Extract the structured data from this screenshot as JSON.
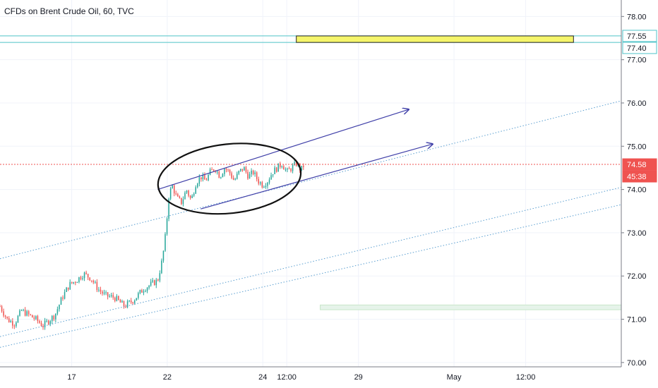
{
  "title": "CFDs on Brent Crude Oil, 60, TVC",
  "colors": {
    "up": "#26a69a",
    "down": "#ef5350",
    "channel": "#3f3fa8",
    "dotted": "#5b9fd0",
    "hline": "#4fc3c8",
    "zone_fill": "#f5f56b",
    "green_zone": "#e6f3ea",
    "last_price": "#ef5350"
  },
  "price_tags": [
    {
      "label": "77.55",
      "value": 77.55,
      "kind": "line"
    },
    {
      "label": "77.40",
      "value": 77.4,
      "kind": "line"
    },
    {
      "label": "74.58",
      "value": 74.58,
      "kind": "last"
    },
    {
      "label": "45:38",
      "value": 74.35,
      "kind": "countdown"
    }
  ],
  "chart_data": {
    "type": "candlestick",
    "title": "CFDs on Brent Crude Oil, 60, TVC",
    "y_ticks": [
      "70.00",
      "71.00",
      "72.00",
      "73.00",
      "74.00",
      "75.00",
      "76.00",
      "77.00",
      "78.00"
    ],
    "x_ticks": [
      {
        "label": "17",
        "x": 1.5
      },
      {
        "label": "22",
        "x": 3.5
      },
      {
        "label": "24",
        "x": 5.5
      },
      {
        "label": "12:00",
        "x": 6.0
      },
      {
        "label": "29",
        "x": 7.5
      },
      {
        "label": "May",
        "x": 9.5
      },
      {
        "label": "12:00",
        "x": 11.0
      }
    ],
    "ylim": [
      69.9,
      78.25
    ],
    "xlim": [
      0,
      13
    ],
    "grid": true,
    "close_path": [
      [
        0.0,
        71.3
      ],
      [
        0.15,
        71.0
      ],
      [
        0.3,
        70.9
      ],
      [
        0.45,
        71.2
      ],
      [
        0.6,
        71.1
      ],
      [
        0.75,
        71.0
      ],
      [
        0.9,
        70.85
      ],
      [
        1.05,
        71.0
      ],
      [
        1.15,
        71.1
      ],
      [
        1.3,
        71.5
      ],
      [
        1.45,
        71.8
      ],
      [
        1.6,
        71.9
      ],
      [
        1.75,
        72.05
      ],
      [
        1.9,
        71.95
      ],
      [
        2.05,
        71.7
      ],
      [
        2.2,
        71.55
      ],
      [
        2.4,
        71.5
      ],
      [
        2.6,
        71.3
      ],
      [
        2.8,
        71.45
      ],
      [
        3.0,
        71.7
      ],
      [
        3.15,
        71.8
      ],
      [
        3.3,
        71.9
      ],
      [
        3.4,
        72.4
      ],
      [
        3.48,
        73.1
      ],
      [
        3.52,
        73.8
      ],
      [
        3.6,
        74.1
      ],
      [
        3.7,
        73.8
      ],
      [
        3.8,
        73.7
      ],
      [
        3.9,
        74.0
      ],
      [
        4.0,
        73.75
      ],
      [
        4.1,
        74.15
      ],
      [
        4.2,
        74.3
      ],
      [
        4.3,
        74.2
      ],
      [
        4.4,
        74.4
      ],
      [
        4.5,
        74.5
      ],
      [
        4.6,
        74.3
      ],
      [
        4.7,
        74.5
      ],
      [
        4.8,
        74.4
      ],
      [
        4.9,
        74.2
      ],
      [
        5.0,
        74.4
      ],
      [
        5.1,
        74.5
      ],
      [
        5.2,
        74.3
      ],
      [
        5.3,
        74.4
      ],
      [
        5.4,
        74.2
      ],
      [
        5.5,
        74.1
      ],
      [
        5.6,
        74.2
      ],
      [
        5.7,
        74.4
      ],
      [
        5.8,
        74.5
      ],
      [
        5.9,
        74.6
      ],
      [
        6.0,
        74.4
      ],
      [
        6.1,
        74.5
      ],
      [
        6.2,
        74.6
      ],
      [
        6.3,
        74.45
      ],
      [
        6.35,
        74.55
      ]
    ],
    "last_price": 74.58,
    "annotations": {
      "horizontal_lines": [
        77.55,
        77.4
      ],
      "highlight_zone": {
        "x0": 6.2,
        "x1": 12.0,
        "y0": 77.4,
        "y1": 77.55
      },
      "green_zone": {
        "x0": 6.7,
        "x1": 13.0,
        "y0": 71.22,
        "y1": 71.33
      },
      "arrows": [
        {
          "from": [
            3.3,
            74.0
          ],
          "to": [
            8.55,
            75.85
          ]
        },
        {
          "from": [
            4.2,
            73.55
          ],
          "to": [
            9.05,
            75.05
          ]
        }
      ],
      "dotted_lines": [
        {
          "from": [
            0.0,
            72.4
          ],
          "to": [
            13.0,
            76.05
          ]
        },
        {
          "from": [
            0.0,
            70.6
          ],
          "to": [
            13.0,
            74.05
          ]
        },
        {
          "from": [
            0.0,
            70.35
          ],
          "to": [
            13.0,
            73.65
          ]
        }
      ],
      "ellipse": {
        "cx": 4.8,
        "cy": 74.25,
        "rx": 1.5,
        "ry": 0.8
      }
    }
  }
}
